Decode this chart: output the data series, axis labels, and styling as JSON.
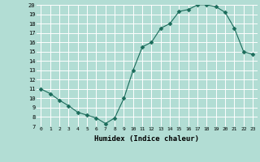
{
  "x": [
    0,
    1,
    2,
    3,
    4,
    5,
    6,
    7,
    8,
    9,
    10,
    11,
    12,
    13,
    14,
    15,
    16,
    17,
    18,
    19,
    20,
    21,
    22,
    23
  ],
  "y": [
    11.0,
    10.5,
    9.8,
    9.2,
    8.5,
    8.2,
    7.9,
    7.3,
    7.9,
    10.0,
    13.0,
    15.5,
    16.0,
    17.5,
    18.0,
    19.3,
    19.5,
    20.0,
    20.0,
    19.8,
    19.2,
    17.5,
    15.0,
    14.7
  ],
  "line_color": "#1a6b5a",
  "marker": "D",
  "marker_size": 2.5,
  "bg_color": "#b2ddd4",
  "grid_color": "#ffffff",
  "xlabel": "Humidex (Indice chaleur)",
  "ylabel": "",
  "title": "",
  "xlim": [
    -0.5,
    23.5
  ],
  "ylim": [
    7,
    20
  ],
  "yticks": [
    7,
    8,
    9,
    10,
    11,
    12,
    13,
    14,
    15,
    16,
    17,
    18,
    19,
    20
  ],
  "xticks": [
    0,
    1,
    2,
    3,
    4,
    5,
    6,
    7,
    8,
    9,
    10,
    11,
    12,
    13,
    14,
    15,
    16,
    17,
    18,
    19,
    20,
    21,
    22,
    23
  ]
}
